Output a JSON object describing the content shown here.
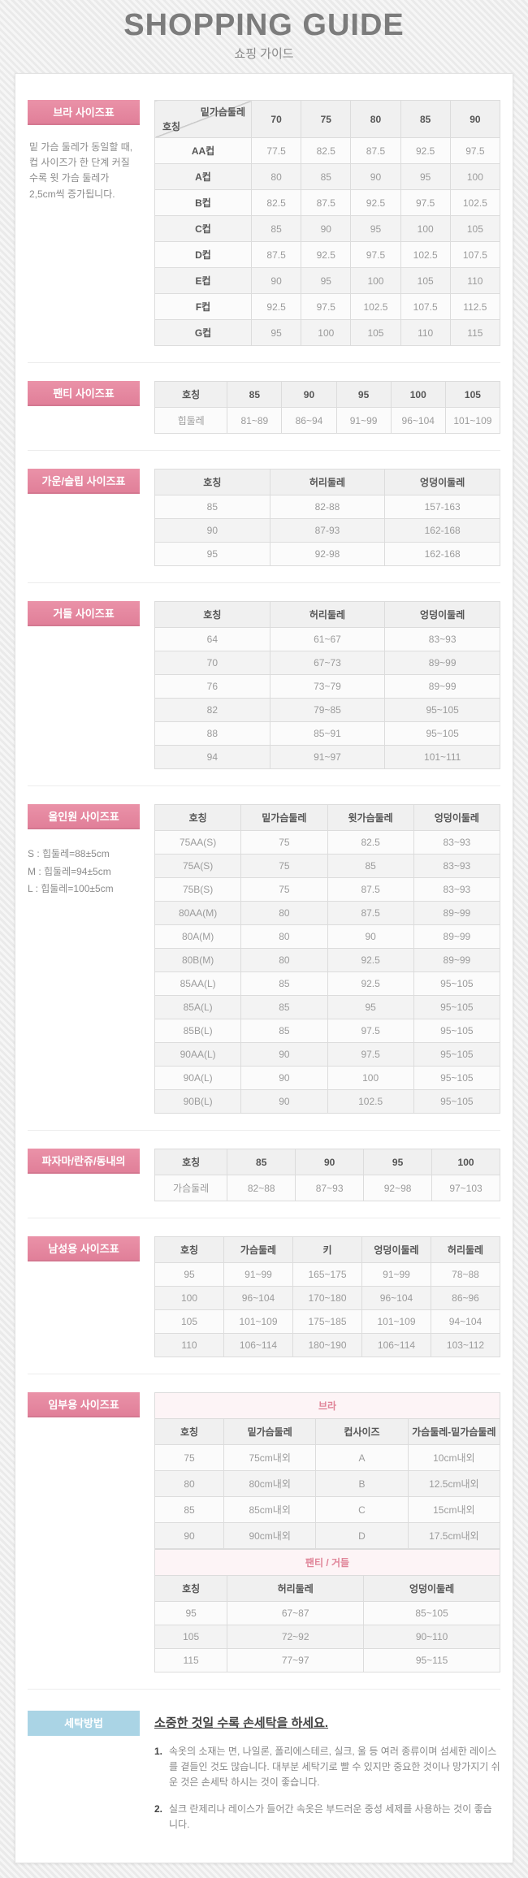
{
  "header": {
    "title": "SHOPPING GUIDE",
    "subtitle": "쇼핑 가이드"
  },
  "colors": {
    "accent_pink": "#e5849c",
    "accent_blue": "#aad4e5",
    "maternity_subheader_text": "#e08498",
    "maternity_subheader_bg": "#fdf4f6"
  },
  "sections": {
    "bra": {
      "label": "브라 사이즈표",
      "note": "밑 가슴 둘레가 동일할 때, 컵 사이즈가 한 단계 커질수록 윗 가슴 둘레가 2,5cm씩 증가됩니다.",
      "table": {
        "headers": [
          {
            "top": "밑가슴둘레",
            "bottom": "호칭"
          },
          "70",
          "75",
          "80",
          "85",
          "90"
        ],
        "rows": [
          [
            "AA컵",
            "77.5",
            "82.5",
            "87.5",
            "92.5",
            "97.5"
          ],
          [
            "A컵",
            "80",
            "85",
            "90",
            "95",
            "100"
          ],
          [
            "B컵",
            "82.5",
            "87.5",
            "92.5",
            "97.5",
            "102.5"
          ],
          [
            "C컵",
            "85",
            "90",
            "95",
            "100",
            "105"
          ],
          [
            "D컵",
            "87.5",
            "92.5",
            "97.5",
            "102.5",
            "107.5"
          ],
          [
            "E컵",
            "90",
            "95",
            "100",
            "105",
            "110"
          ],
          [
            "F컵",
            "92.5",
            "97.5",
            "102.5",
            "107.5",
            "112.5"
          ],
          [
            "G컵",
            "95",
            "100",
            "105",
            "110",
            "115"
          ]
        ]
      }
    },
    "panty": {
      "label": "팬티 사이즈표",
      "table": {
        "headers": [
          "호칭",
          "85",
          "90",
          "95",
          "100",
          "105"
        ],
        "rows": [
          [
            "힙둘레",
            "81~89",
            "86~94",
            "91~99",
            "96~104",
            "101~109"
          ]
        ]
      }
    },
    "gown_slip": {
      "label": "가운/슬립 사이즈표",
      "table": {
        "headers": [
          "호칭",
          "허리둘레",
          "엉덩이둘레"
        ],
        "rows": [
          [
            "85",
            "82-88",
            "157-163"
          ],
          [
            "90",
            "87-93",
            "162-168"
          ],
          [
            "95",
            "92-98",
            "162-168"
          ]
        ]
      }
    },
    "girdle": {
      "label": "거들 사이즈표",
      "table": {
        "headers": [
          "호칭",
          "허리둘레",
          "엉덩이둘레"
        ],
        "rows": [
          [
            "64",
            "61~67",
            "83~93"
          ],
          [
            "70",
            "67~73",
            "89~99"
          ],
          [
            "76",
            "73~79",
            "89~99"
          ],
          [
            "82",
            "79~85",
            "95~105"
          ],
          [
            "88",
            "85~91",
            "95~105"
          ],
          [
            "94",
            "91~97",
            "101~111"
          ]
        ]
      }
    },
    "all_in_one": {
      "label": "올인원 사이즈표",
      "notes": [
        "S : 힙둘레=88±5cm",
        "M : 힙둘레=94±5cm",
        "L : 힙둘레=100±5cm"
      ],
      "table": {
        "headers": [
          "호칭",
          "밑가슴둘레",
          "윗가슴둘레",
          "엉덩이둘레"
        ],
        "rows": [
          [
            "75AA(S)",
            "75",
            "82.5",
            "83~93"
          ],
          [
            "75A(S)",
            "75",
            "85",
            "83~93"
          ],
          [
            "75B(S)",
            "75",
            "87.5",
            "83~93"
          ],
          [
            "80AA(M)",
            "80",
            "87.5",
            "89~99"
          ],
          [
            "80A(M)",
            "80",
            "90",
            "89~99"
          ],
          [
            "80B(M)",
            "80",
            "92.5",
            "89~99"
          ],
          [
            "85AA(L)",
            "85",
            "92.5",
            "95~105"
          ],
          [
            "85A(L)",
            "85",
            "95",
            "95~105"
          ],
          [
            "85B(L)",
            "85",
            "97.5",
            "95~105"
          ],
          [
            "90AA(L)",
            "90",
            "97.5",
            "95~105"
          ],
          [
            "90A(L)",
            "90",
            "100",
            "95~105"
          ],
          [
            "90B(L)",
            "90",
            "102.5",
            "95~105"
          ]
        ]
      }
    },
    "pajama": {
      "label": "파자마/란쥬/동내의",
      "table": {
        "headers": [
          "호칭",
          "85",
          "90",
          "95",
          "100"
        ],
        "rows": [
          [
            "가슴둘레",
            "82~88",
            "87~93",
            "92~98",
            "97~103"
          ]
        ]
      }
    },
    "mens": {
      "label": "남성용 사이즈표",
      "table": {
        "headers": [
          "호칭",
          "가슴둘레",
          "키",
          "엉덩이둘레",
          "허리둘레"
        ],
        "rows": [
          [
            "95",
            "91~99",
            "165~175",
            "91~99",
            "78~88"
          ],
          [
            "100",
            "96~104",
            "170~180",
            "96~104",
            "86~96"
          ],
          [
            "105",
            "101~109",
            "175~185",
            "101~109",
            "94~104"
          ],
          [
            "110",
            "106~114",
            "180~190",
            "106~114",
            "103~112"
          ]
        ]
      }
    },
    "maternity": {
      "label": "임부용 사이즈표",
      "bra_title": "브라",
      "bra_table": {
        "headers": [
          "호칭",
          "밑가슴둘레",
          "컵사이즈",
          "가슴둘레-밑가슴둘레"
        ],
        "rows": [
          [
            "75",
            "75cm내외",
            "A",
            "10cm내외"
          ],
          [
            "80",
            "80cm내외",
            "B",
            "12.5cm내외"
          ],
          [
            "85",
            "85cm내외",
            "C",
            "15cm내외"
          ],
          [
            "90",
            "90cm내외",
            "D",
            "17.5cm내외"
          ]
        ]
      },
      "panty_girdle_title": "팬티 / 거들",
      "panty_girdle_table": {
        "headers": [
          "호칭",
          "허리둘레",
          "엉덩이둘레"
        ],
        "rows": [
          [
            "95",
            "67~87",
            "85~105"
          ],
          [
            "105",
            "72~92",
            "90~110"
          ],
          [
            "115",
            "77~97",
            "95~115"
          ]
        ]
      }
    },
    "washing": {
      "label": "세탁방법",
      "title": "소중한 것일 수록 손세탁을 하세요.",
      "items": [
        {
          "num": "1.",
          "text": "속옷의 소재는 면, 나일론, 폴리에스테르, 실크, 울 등 여러 종류이며 섬세한 레이스를 곁들인 것도 많습니다. 대부분 세탁기로 빨 수 있지만 중요한 것이나 망가지기 쉬운 것은 손세탁 하시는 것이 좋습니다."
        },
        {
          "num": "2.",
          "text": "실크 란제리나 레이스가 들어간 속옷은 부드러운 중성 세제를 사용하는 것이 좋습니다."
        }
      ]
    }
  }
}
